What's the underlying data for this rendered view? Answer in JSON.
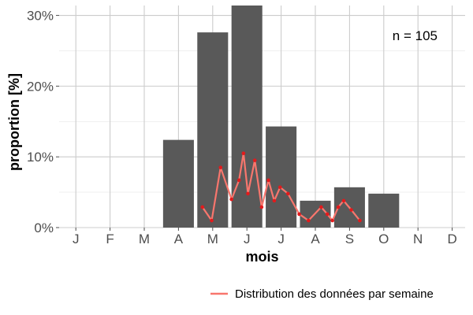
{
  "chart_data": {
    "type": "bar",
    "xlabel": "mois",
    "ylabel": "proportion [%]",
    "categories": [
      "J",
      "F",
      "M",
      "A",
      "M",
      "J",
      "J",
      "A",
      "S",
      "O",
      "N",
      "D"
    ],
    "values": [
      0,
      0,
      0,
      12.4,
      27.6,
      31.4,
      14.3,
      3.8,
      5.7,
      4.8,
      0,
      0
    ],
    "ylim": [
      0,
      31.4
    ],
    "yticks": [
      {
        "value": 0,
        "label": "0%"
      },
      {
        "value": 10,
        "label": "10%"
      },
      {
        "value": 20,
        "label": "20%"
      },
      {
        "value": 30,
        "label": "30%"
      }
    ],
    "annotation": "n = 105",
    "grid": true,
    "legend_position": "bottom-right",
    "series": [
      {
        "name": "Distribution des données par semaine",
        "type": "line",
        "x": [
          3.7,
          3.97,
          4.23,
          4.55,
          4.77,
          4.9,
          5.03,
          5.23,
          5.43,
          5.63,
          5.8,
          5.97,
          6.2,
          6.53,
          6.8,
          7.17,
          7.35,
          7.5,
          7.67,
          7.83,
          8.05,
          8.3
        ],
        "y": [
          2.9,
          1.0,
          8.5,
          4.0,
          6.7,
          10.5,
          4.8,
          9.5,
          2.9,
          6.7,
          3.8,
          5.7,
          4.8,
          1.9,
          1.0,
          2.9,
          1.9,
          1.0,
          2.9,
          3.8,
          2.5,
          1.0
        ]
      }
    ]
  },
  "colors": {
    "bar": "#595959",
    "line": "#f8766d",
    "point": "#e31a1c",
    "grid": "#cccccc",
    "tick": "#4d4d4d"
  }
}
